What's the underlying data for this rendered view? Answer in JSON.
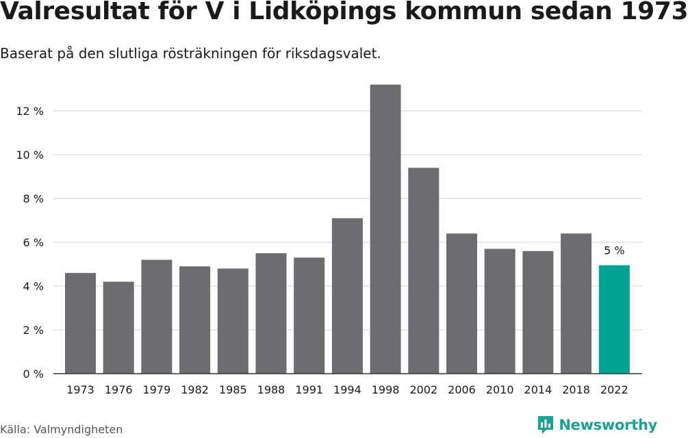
{
  "title": "Valresultat för V i Lidköpings kommun sedan 1973",
  "subtitle": "Baserat på den slutliga rösträkningen för riksdagsvalet.",
  "source": "Källa: Valmyndigheten",
  "brand": {
    "name": "Newsworthy",
    "color": "#1aa393",
    "icon": "newsworthy-bar-chart-icon"
  },
  "colors": {
    "bar": "#6d6c71",
    "highlight": "#00a293",
    "grid": "#dddddd",
    "axis": "#333333"
  },
  "chart_data": {
    "type": "bar",
    "categories": [
      "1973",
      "1976",
      "1979",
      "1982",
      "1985",
      "1988",
      "1991",
      "1994",
      "1998",
      "2002",
      "2006",
      "2010",
      "2014",
      "2018",
      "2022"
    ],
    "values": [
      4.6,
      4.2,
      5.2,
      4.9,
      4.8,
      5.5,
      5.3,
      7.1,
      13.2,
      9.4,
      6.4,
      5.7,
      5.6,
      6.4,
      4.95
    ],
    "highlight_index": 14,
    "data_labels": [
      {
        "index": 14,
        "text": "5 %"
      }
    ],
    "yticks": [
      0,
      2,
      4,
      6,
      8,
      10,
      12
    ],
    "ytick_labels": [
      "0 %",
      "2 %",
      "4 %",
      "6 %",
      "8 %",
      "10 %",
      "12 %"
    ],
    "ylim": [
      0,
      13.2
    ],
    "grid": true,
    "xlabel": "",
    "ylabel": ""
  }
}
